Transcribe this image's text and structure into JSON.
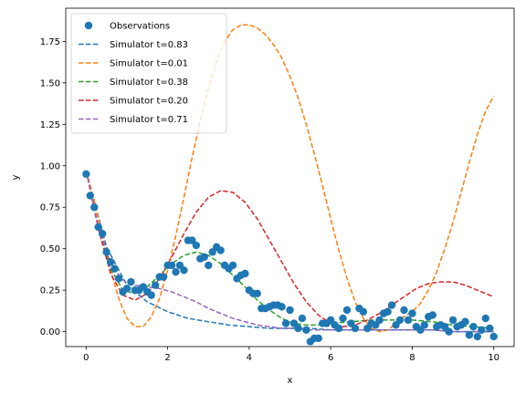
{
  "chart_data": {
    "type": "scatter",
    "xlabel": "x",
    "ylabel": "y",
    "xlim": [
      -0.5,
      10.5
    ],
    "ylim": [
      -0.09,
      1.95
    ],
    "grid": false,
    "legend_position": "top-left",
    "xticks": [
      "0",
      "2",
      "4",
      "6",
      "8",
      "10"
    ],
    "xtick_values": [
      0,
      2,
      4,
      6,
      8,
      10
    ],
    "yticks": [
      "0.00",
      "0.25",
      "0.50",
      "0.75",
      "1.00",
      "1.25",
      "1.50",
      "1.75"
    ],
    "ytick_values": [
      0,
      0.25,
      0.5,
      0.75,
      1.0,
      1.25,
      1.5,
      1.75
    ],
    "observations": {
      "name": "Observations",
      "color": "#1f77b4",
      "points": [
        [
          0.0,
          0.95
        ],
        [
          0.1,
          0.82
        ],
        [
          0.2,
          0.75
        ],
        [
          0.3,
          0.63
        ],
        [
          0.4,
          0.59
        ],
        [
          0.5,
          0.48
        ],
        [
          0.6,
          0.42
        ],
        [
          0.7,
          0.38
        ],
        [
          0.8,
          0.32
        ],
        [
          0.9,
          0.24
        ],
        [
          1.0,
          0.26
        ],
        [
          1.1,
          0.3
        ],
        [
          1.2,
          0.25
        ],
        [
          1.3,
          0.25
        ],
        [
          1.4,
          0.27
        ],
        [
          1.5,
          0.24
        ],
        [
          1.6,
          0.22
        ],
        [
          1.7,
          0.28
        ],
        [
          1.8,
          0.33
        ],
        [
          1.9,
          0.33
        ],
        [
          2.0,
          0.4
        ],
        [
          2.1,
          0.4
        ],
        [
          2.2,
          0.36
        ],
        [
          2.3,
          0.4
        ],
        [
          2.4,
          0.37
        ],
        [
          2.5,
          0.55
        ],
        [
          2.6,
          0.55
        ],
        [
          2.7,
          0.52
        ],
        [
          2.8,
          0.44
        ],
        [
          2.9,
          0.45
        ],
        [
          3.0,
          0.4
        ],
        [
          3.1,
          0.48
        ],
        [
          3.2,
          0.51
        ],
        [
          3.3,
          0.49
        ],
        [
          3.4,
          0.4
        ],
        [
          3.5,
          0.38
        ],
        [
          3.6,
          0.4
        ],
        [
          3.7,
          0.32
        ],
        [
          3.8,
          0.34
        ],
        [
          3.9,
          0.35
        ],
        [
          4.0,
          0.25
        ],
        [
          4.1,
          0.23
        ],
        [
          4.2,
          0.23
        ],
        [
          4.3,
          0.14
        ],
        [
          4.4,
          0.14
        ],
        [
          4.5,
          0.15
        ],
        [
          4.6,
          0.16
        ],
        [
          4.7,
          0.16
        ],
        [
          4.8,
          0.15
        ],
        [
          4.9,
          0.05
        ],
        [
          5.0,
          0.13
        ],
        [
          5.1,
          0.05
        ],
        [
          5.2,
          0.02
        ],
        [
          5.3,
          0.08
        ],
        [
          5.4,
          0.01
        ],
        [
          5.5,
          -0.06
        ],
        [
          5.6,
          -0.04
        ],
        [
          5.7,
          -0.04
        ],
        [
          5.8,
          0.05
        ],
        [
          5.9,
          0.05
        ],
        [
          6.0,
          0.07
        ],
        [
          6.1,
          0.04
        ],
        [
          6.2,
          0.02
        ],
        [
          6.3,
          0.08
        ],
        [
          6.4,
          0.13
        ],
        [
          6.5,
          0.05
        ],
        [
          6.6,
          0.02
        ],
        [
          6.7,
          0.14
        ],
        [
          6.8,
          0.12
        ],
        [
          6.9,
          0.02
        ],
        [
          7.0,
          0.05
        ],
        [
          7.1,
          0.04
        ],
        [
          7.2,
          0.07
        ],
        [
          7.3,
          0.11
        ],
        [
          7.4,
          0.12
        ],
        [
          7.5,
          0.16
        ],
        [
          7.6,
          0.04
        ],
        [
          7.7,
          0.07
        ],
        [
          7.8,
          0.13
        ],
        [
          7.9,
          0.07
        ],
        [
          8.0,
          0.11
        ],
        [
          8.1,
          0.03
        ],
        [
          8.2,
          0.01
        ],
        [
          8.3,
          0.04
        ],
        [
          8.4,
          0.09
        ],
        [
          8.5,
          0.1
        ],
        [
          8.6,
          0.03
        ],
        [
          8.7,
          0.04
        ],
        [
          8.8,
          0.03
        ],
        [
          8.9,
          0.0
        ],
        [
          9.0,
          0.07
        ],
        [
          9.1,
          0.03
        ],
        [
          9.2,
          0.04
        ],
        [
          9.3,
          0.06
        ],
        [
          9.4,
          -0.02
        ],
        [
          9.5,
          0.03
        ],
        [
          9.6,
          -0.03
        ],
        [
          9.7,
          0.01
        ],
        [
          9.8,
          0.08
        ],
        [
          9.9,
          0.02
        ],
        [
          10.0,
          -0.03
        ]
      ]
    },
    "series": [
      {
        "name": "Simulator t=0.83",
        "color": "#1f77b4",
        "x": [
          0,
          0.5,
          1,
          1.5,
          2,
          2.5,
          3,
          3.5,
          4,
          4.5,
          5,
          5.5,
          6,
          6.5,
          7,
          7.5,
          8,
          8.5,
          9,
          9.5,
          10
        ],
        "values": [
          0.97,
          0.51,
          0.28,
          0.18,
          0.12,
          0.08,
          0.06,
          0.04,
          0.03,
          0.02,
          0.02,
          0.02,
          0.01,
          0.01,
          0.01,
          0.01,
          0.01,
          0.01,
          0.0,
          0.0,
          0.0
        ]
      },
      {
        "name": "Simulator t=0.01",
        "color": "#ff7f0e",
        "x": [
          0,
          0.2,
          0.4,
          0.6,
          0.8,
          1.0,
          1.2,
          1.4,
          1.6,
          1.8,
          2.0,
          2.2,
          2.4,
          2.6,
          2.8,
          3.0,
          3.2,
          3.4,
          3.6,
          3.8,
          4.0,
          4.2,
          4.4,
          4.6,
          4.8,
          5.0,
          5.2,
          5.4,
          5.6,
          5.8,
          6.0,
          6.2,
          6.4,
          6.6,
          6.8,
          7.0,
          7.2,
          7.4,
          7.6,
          7.8,
          8.0,
          8.2,
          8.4,
          8.6,
          8.8,
          9.0,
          9.2,
          9.4,
          9.6,
          9.8,
          10.0
        ],
        "values": [
          0.97,
          0.79,
          0.58,
          0.37,
          0.2,
          0.08,
          0.03,
          0.03,
          0.09,
          0.2,
          0.37,
          0.58,
          0.81,
          1.05,
          1.27,
          1.47,
          1.63,
          1.75,
          1.82,
          1.85,
          1.85,
          1.83,
          1.79,
          1.73,
          1.65,
          1.54,
          1.41,
          1.25,
          1.07,
          0.88,
          0.68,
          0.49,
          0.32,
          0.18,
          0.08,
          0.02,
          0.0,
          0.01,
          0.05,
          0.09,
          0.12,
          0.17,
          0.25,
          0.36,
          0.5,
          0.66,
          0.84,
          1.02,
          1.19,
          1.33,
          1.42
        ]
      },
      {
        "name": "Simulator t=0.38",
        "color": "#2ca02c",
        "x": [
          0,
          0.3,
          0.6,
          0.9,
          1.2,
          1.5,
          1.8,
          2.1,
          2.4,
          2.7,
          3.0,
          3.3,
          3.6,
          3.9,
          4.2,
          4.5,
          4.8,
          5.1,
          5.4,
          5.7,
          6.0,
          6.5,
          7.0,
          7.5,
          8.0,
          8.5,
          9.0,
          9.5,
          10.0
        ],
        "values": [
          0.97,
          0.63,
          0.38,
          0.25,
          0.23,
          0.27,
          0.34,
          0.41,
          0.46,
          0.48,
          0.46,
          0.41,
          0.34,
          0.27,
          0.19,
          0.13,
          0.08,
          0.05,
          0.04,
          0.04,
          0.05,
          0.06,
          0.07,
          0.07,
          0.07,
          0.06,
          0.04,
          0.03,
          0.02
        ]
      },
      {
        "name": "Simulator t=0.20",
        "color": "#d62728",
        "x": [
          0,
          0.3,
          0.6,
          0.9,
          1.2,
          1.5,
          1.8,
          2.1,
          2.4,
          2.7,
          3.0,
          3.3,
          3.6,
          3.9,
          4.2,
          4.5,
          4.8,
          5.1,
          5.4,
          5.7,
          6.0,
          6.3,
          6.6,
          6.9,
          7.2,
          7.5,
          7.8,
          8.1,
          8.4,
          8.7,
          9.0,
          9.3,
          9.6,
          10.0
        ],
        "values": [
          0.97,
          0.62,
          0.35,
          0.22,
          0.19,
          0.23,
          0.32,
          0.45,
          0.59,
          0.72,
          0.81,
          0.85,
          0.84,
          0.78,
          0.68,
          0.55,
          0.42,
          0.29,
          0.18,
          0.1,
          0.05,
          0.03,
          0.04,
          0.07,
          0.11,
          0.16,
          0.21,
          0.26,
          0.29,
          0.3,
          0.3,
          0.28,
          0.25,
          0.21
        ]
      },
      {
        "name": "Simulator t=0.71",
        "color": "#9467bd",
        "x": [
          0,
          0.3,
          0.6,
          0.9,
          1.2,
          1.5,
          1.8,
          2.1,
          2.4,
          2.7,
          3.0,
          3.3,
          3.6,
          3.9,
          4.2,
          4.5,
          4.8,
          5.1,
          5.5,
          6.0,
          6.5,
          7.0,
          7.5,
          8.0,
          8.5,
          9.0,
          9.5,
          10.0
        ],
        "values": [
          0.97,
          0.64,
          0.41,
          0.31,
          0.28,
          0.27,
          0.26,
          0.24,
          0.21,
          0.18,
          0.14,
          0.11,
          0.08,
          0.06,
          0.04,
          0.03,
          0.02,
          0.02,
          0.01,
          0.01,
          0.01,
          0.01,
          0.01,
          0.01,
          0.01,
          0.0,
          0.0,
          0.0
        ]
      }
    ]
  }
}
